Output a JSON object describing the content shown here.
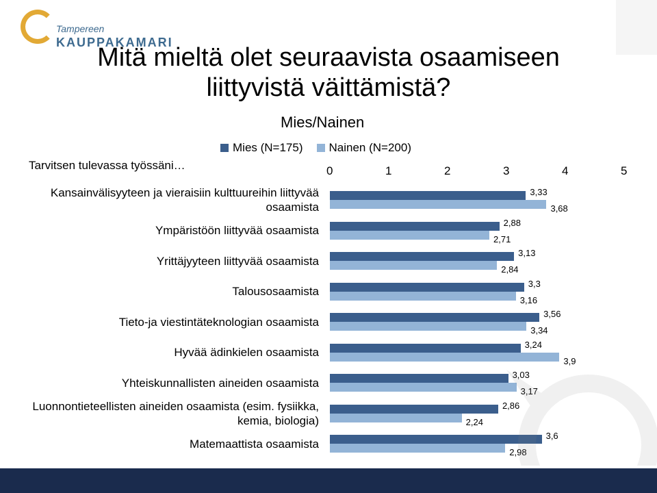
{
  "logo": {
    "line1": "Tampereen",
    "line2": "KAUPPAKAMARI"
  },
  "title": "Mitä mieltä olet seuraavista osaamiseen liittyvistä väittämistä?",
  "question": "Tarvitsen tulevassa työssäni…",
  "colors": {
    "male": "#3b5e8c",
    "female": "#93b4d7",
    "bottom_band": "#1a2b4d"
  },
  "chart_data": {
    "type": "bar",
    "orientation": "horizontal",
    "title": "Mies/Nainen",
    "xlim": [
      0,
      5
    ],
    "x_ticks": [
      "0",
      "1",
      "2",
      "3",
      "4",
      "5"
    ],
    "legend_placement": "top",
    "categories": [
      "Kansainvälisyyteen ja vieraisiin kulttuureihin liittyvää osaamista",
      "Ympäristöön liittyvää osaamista",
      "Yrittäjyyteen liittyvää osaamista",
      "Talousosaamista",
      "Tieto-ja viestintäteknologian osaamista",
      "Hyvää ädinkielen osaamista",
      "Yhteiskunnallisten aineiden osaamista",
      "Luonnontieteellisten aineiden osaamista (esim. fysiikka, kemia, biologia)",
      "Matemaattista osaamista"
    ],
    "series": [
      {
        "name": "Mies (N=175)",
        "values": [
          3.33,
          2.88,
          3.13,
          3.3,
          3.56,
          3.24,
          3.03,
          2.86,
          3.6
        ],
        "labels": [
          "3,33",
          "2,88",
          "3,13",
          "3,3",
          "3,56",
          "3,24",
          "3,03",
          "2,86",
          "3,6"
        ]
      },
      {
        "name": "Nainen (N=200)",
        "values": [
          3.68,
          2.71,
          2.84,
          3.16,
          3.34,
          3.9,
          3.17,
          2.24,
          2.98
        ],
        "labels": [
          "3,68",
          "2,71",
          "2,84",
          "3,16",
          "3,34",
          "3,9",
          "3,17",
          "2,24",
          "2,98"
        ]
      }
    ]
  }
}
